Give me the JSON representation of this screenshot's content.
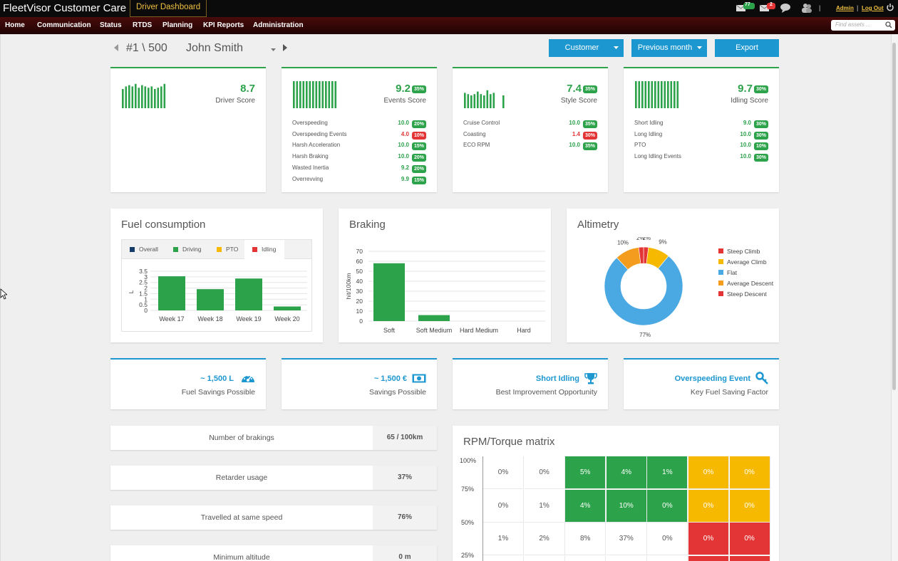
{
  "topbar": {
    "app_title": "FleetVisor Customer Care",
    "dashboard_tab": "Driver Dashboard",
    "mail_count": "77",
    "alert_count": "2",
    "admin_link": "Admin",
    "separator": "|",
    "logout_link": "Log Out"
  },
  "nav": [
    "Home",
    "Communication",
    "Status",
    "RTDS",
    "Planning",
    "KPI Reports",
    "Administration"
  ],
  "search": {
    "placeholder": "Find assets ..."
  },
  "driver": {
    "rank": "#1 \\ 500",
    "name": "John Smith"
  },
  "buttons": {
    "customer": "Customer",
    "period": "Previous month",
    "export": "Export"
  },
  "scores": {
    "driver": {
      "value": "8.7",
      "label": "Driver Score"
    },
    "events": {
      "value": "9.2",
      "weight": "35%",
      "label": "Events Score",
      "items": [
        {
          "name": "Overspeeding",
          "value": "10.0",
          "weight": "20%",
          "status": "good"
        },
        {
          "name": "Overspeeding Events",
          "value": "4.0",
          "weight": "10%",
          "status": "bad"
        },
        {
          "name": "Harsh Acceleration",
          "value": "10.0",
          "weight": "15%",
          "status": "good"
        },
        {
          "name": "Harsh Braking",
          "value": "10.0",
          "weight": "20%",
          "status": "good"
        },
        {
          "name": "Wasted Inertia",
          "value": "9.2",
          "weight": "20%",
          "status": "good"
        },
        {
          "name": "Overrevving",
          "value": "9.9",
          "weight": "15%",
          "status": "good"
        }
      ]
    },
    "style": {
      "value": "7.4",
      "weight": "35%",
      "label": "Style Score",
      "items": [
        {
          "name": "Cruise Control",
          "value": "10.0",
          "weight": "35%",
          "status": "good"
        },
        {
          "name": "Coasting",
          "value": "1.4",
          "weight": "30%",
          "status": "bad"
        },
        {
          "name": "ECO RPM",
          "value": "10.0",
          "weight": "35%",
          "status": "good"
        }
      ]
    },
    "idling": {
      "value": "9.7",
      "weight": "30%",
      "label": "Idling Score",
      "items": [
        {
          "name": "Short Idling",
          "value": "9.0",
          "weight": "30%",
          "status": "good"
        },
        {
          "name": "Long Idling",
          "value": "10.0",
          "weight": "30%",
          "status": "good"
        },
        {
          "name": "PTO",
          "value": "10.0",
          "weight": "10%",
          "status": "good"
        },
        {
          "name": "Long Idling Events",
          "value": "10.0",
          "weight": "30%",
          "status": "good"
        }
      ]
    }
  },
  "colors": {
    "green": "#2ca24a",
    "red": "#e33535",
    "blue": "#1c97cf",
    "yellow": "#f7b900",
    "orange": "#f39c1d",
    "lightblue": "#4aa8e2",
    "navy": "#163c6b"
  },
  "fuel": {
    "title": "Fuel consumption",
    "tabs": [
      "Overall",
      "Driving",
      "PTO",
      "Idling"
    ],
    "active_tab": "Idling",
    "ylabel": "L",
    "yticks": [
      "3.5",
      "3",
      "2.5",
      "2",
      "1.5",
      "1",
      "0.5",
      "0"
    ]
  },
  "braking": {
    "title": "Braking",
    "ylabel": "hit/100km",
    "yticks": [
      "70",
      "60",
      "50",
      "40",
      "30",
      "20",
      "10",
      "0"
    ]
  },
  "altimetry": {
    "title": "Altimetry"
  },
  "chart_data": [
    {
      "type": "bar",
      "title": "Fuel consumption",
      "ylabel": "L",
      "categories": [
        "Week 17",
        "Week 18",
        "Week 19",
        "Week 20"
      ],
      "values": [
        3.05,
        1.9,
        2.85,
        0.35
      ],
      "ylim": [
        0,
        3.5
      ],
      "grid": true
    },
    {
      "type": "bar",
      "title": "Braking",
      "ylabel": "hit/100km",
      "categories": [
        "Soft",
        "Soft Medium",
        "Hard Medium",
        "Hard"
      ],
      "values": [
        58,
        6,
        0,
        0
      ],
      "ylim": [
        0,
        70
      ],
      "grid": true
    },
    {
      "type": "pie",
      "title": "Altimetry",
      "categories": [
        "Steep Climb",
        "Average Climb",
        "Flat",
        "Average Descent",
        "Steep Descent"
      ],
      "values": [
        2,
        9,
        77,
        10,
        2
      ],
      "labels": [
        "2%",
        "9%",
        "77%",
        "10%",
        "2%"
      ],
      "colors": [
        "#e33535",
        "#f7b900",
        "#4aa8e2",
        "#f39c1d",
        "#e33535"
      ],
      "legend": "right"
    }
  ],
  "badges": [
    {
      "value": "~ 1,500 L",
      "label": "Fuel Savings Possible",
      "icon": "gauge-icon"
    },
    {
      "value": "~ 1,500 €",
      "label": "Savings Possible",
      "icon": "banknote-icon"
    },
    {
      "value": "Short Idling",
      "label": "Best Improvement Opportunity",
      "icon": "trophy-icon"
    },
    {
      "value": "Overspeeding Event",
      "label": "Key Fuel Saving Factor",
      "icon": "key-icon"
    }
  ],
  "stats": [
    {
      "label": "Number of brakings",
      "value": "65 / 100km"
    },
    {
      "label": "Retarder usage",
      "value": "37%"
    },
    {
      "label": "Travelled at same speed",
      "value": "76%"
    },
    {
      "label": "Minimum altitude",
      "value": "0 m"
    }
  ],
  "matrix": {
    "title": "RPM/Torque matrix",
    "ylabels": [
      "100%",
      "75%",
      "50%",
      "25%"
    ],
    "rows": [
      [
        "0%",
        "0%",
        "5%",
        "4%",
        "1%",
        "0%",
        "0%"
      ],
      [
        "0%",
        "1%",
        "4%",
        "10%",
        "0%",
        "0%",
        "0%"
      ],
      [
        "1%",
        "2%",
        "8%",
        "37%",
        "0%",
        "0%",
        "0%"
      ]
    ],
    "colors": [
      [
        "none",
        "none",
        "green",
        "green",
        "green",
        "yellow",
        "yellow"
      ],
      [
        "none",
        "none",
        "green",
        "green",
        "green",
        "yellow",
        "yellow"
      ],
      [
        "none",
        "none",
        "none",
        "none",
        "none",
        "red",
        "red"
      ]
    ]
  }
}
